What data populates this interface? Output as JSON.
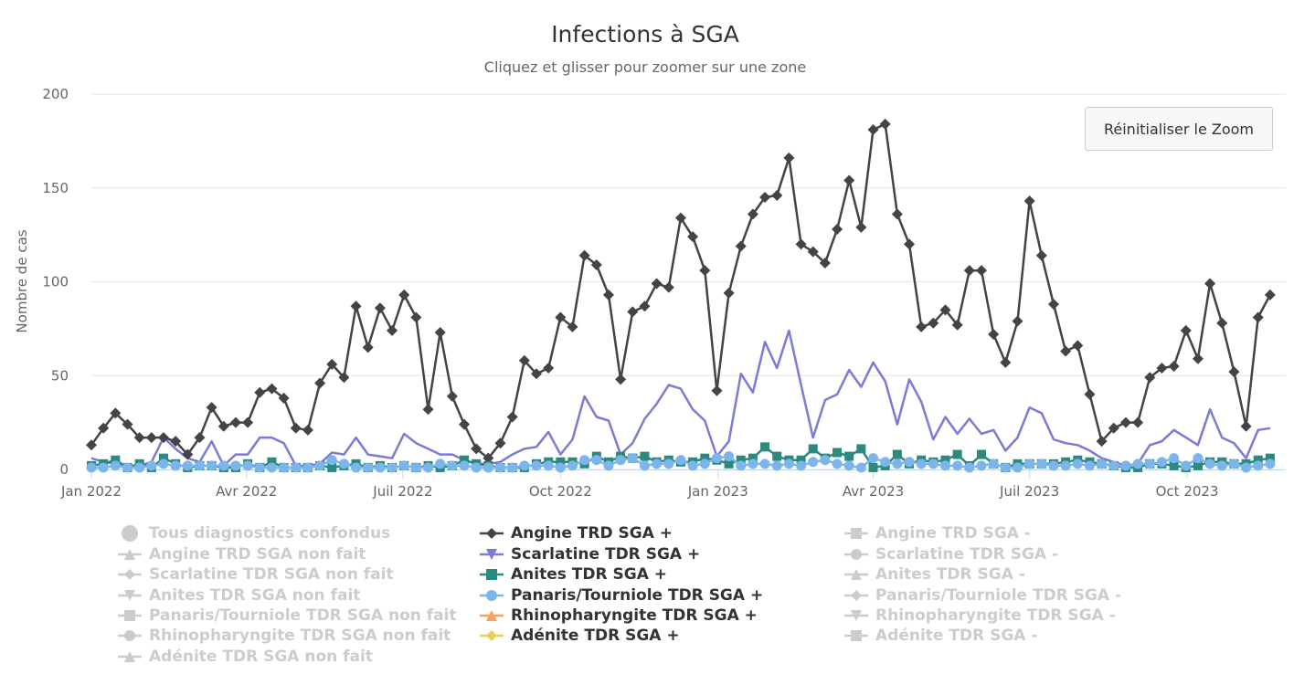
{
  "chart_data": {
    "type": "line",
    "title": "Infections à SGA",
    "subtitle": "Cliquez et glisser pour zoomer sur une zone",
    "ylabel": "Nombre de cas",
    "xlabel": "",
    "ylim": [
      0,
      200
    ],
    "yticks": [
      "0",
      "50",
      "100",
      "150",
      "200"
    ],
    "xticks": [
      {
        "label": "Jan 2022",
        "week": 0
      },
      {
        "label": "Avr 2022",
        "week": 12.9
      },
      {
        "label": "Juil 2022",
        "week": 25.9
      },
      {
        "label": "Oct 2022",
        "week": 39.0
      },
      {
        "label": "Jan 2023",
        "week": 52.1
      },
      {
        "label": "Avr 2023",
        "week": 65
      },
      {
        "label": "Juil 2023",
        "week": 78
      },
      {
        "label": "Oct 2023",
        "week": 91.1
      }
    ],
    "x_range_weeks": [
      0,
      99.3
    ],
    "reset_zoom_label": "Réinitialiser le Zoom",
    "series": [
      {
        "name": "Angine TRD SGA +",
        "color": "#434348",
        "marker": "diamond",
        "visible": true,
        "values": [
          13,
          22,
          30,
          24,
          17,
          17,
          17,
          15,
          8,
          17,
          33,
          23,
          25,
          25,
          41,
          43,
          38,
          22,
          21,
          46,
          56,
          49,
          87,
          65,
          86,
          74,
          93,
          81,
          32,
          73,
          39,
          24,
          11,
          6,
          14,
          28,
          58,
          51,
          54,
          81,
          76,
          114,
          109,
          93,
          48,
          84,
          87,
          99,
          97,
          134,
          124,
          106,
          42,
          94,
          119,
          136,
          145,
          146,
          166,
          120,
          116,
          110,
          128,
          154,
          129,
          181,
          184,
          136,
          120,
          76,
          78,
          85,
          77,
          106,
          106,
          72,
          57,
          79,
          143,
          114,
          88,
          63,
          66,
          40,
          15,
          22,
          25,
          25,
          49,
          54,
          55,
          74,
          59,
          99,
          78,
          52,
          23,
          81,
          93
        ]
      },
      {
        "name": "Scarlatine TDR SGA +",
        "color": "#7b7bd6",
        "marker": "triangle-down",
        "visible": true,
        "values": [
          6,
          4,
          3,
          2,
          2,
          4,
          17,
          11,
          6,
          4,
          15,
          2,
          8,
          8,
          17,
          17,
          14,
          2,
          2,
          3,
          9,
          8,
          17,
          8,
          7,
          6,
          19,
          14,
          11,
          8,
          8,
          5,
          3,
          3,
          4,
          8,
          11,
          12,
          20,
          8,
          16,
          39,
          28,
          26,
          8,
          14,
          27,
          35,
          45,
          43,
          32,
          26,
          7,
          15,
          51,
          41,
          68,
          54,
          74,
          45,
          17,
          37,
          40,
          53,
          44,
          57,
          47,
          24,
          48,
          36,
          16,
          28,
          19,
          27,
          19,
          21,
          10,
          17,
          33,
          30,
          16,
          14,
          13,
          10,
          6,
          4,
          2,
          3,
          13,
          15,
          21,
          17,
          13,
          32,
          17,
          14,
          6,
          21,
          22
        ]
      },
      {
        "name": "Anites TDR SGA +",
        "color": "#2a8a7e",
        "marker": "square",
        "visible": true,
        "values": [
          2,
          3,
          5,
          1,
          3,
          1,
          6,
          3,
          1,
          2,
          2,
          1,
          1,
          3,
          1,
          4,
          1,
          1,
          1,
          2,
          1,
          2,
          3,
          1,
          2,
          1,
          2,
          1,
          2,
          1,
          2,
          5,
          3,
          2,
          1,
          1,
          1,
          3,
          4,
          4,
          4,
          3,
          7,
          4,
          7,
          6,
          7,
          4,
          5,
          4,
          4,
          6,
          5,
          3,
          5,
          6,
          12,
          7,
          5,
          5,
          11,
          6,
          9,
          7,
          11,
          1,
          2,
          8,
          3,
          5,
          4,
          5,
          8,
          2,
          8,
          3,
          1,
          3,
          3,
          3,
          3,
          4,
          5,
          4,
          3,
          2,
          1,
          1,
          3,
          3,
          2,
          1,
          2,
          4,
          4,
          3,
          3,
          5,
          6
        ]
      },
      {
        "name": "Panaris/Tourniole TDR SGA +",
        "color": "#7cb5ec",
        "marker": "circle",
        "visible": true,
        "values": [
          1,
          1,
          2,
          1,
          1,
          2,
          3,
          2,
          2,
          2,
          2,
          2,
          2,
          2,
          1,
          1,
          1,
          1,
          1,
          2,
          5,
          3,
          1,
          1,
          1,
          1,
          2,
          1,
          1,
          3,
          2,
          2,
          1,
          1,
          1,
          1,
          2,
          2,
          2,
          1,
          2,
          5,
          5,
          2,
          5,
          6,
          2,
          3,
          3,
          5,
          2,
          3,
          6,
          7,
          2,
          3,
          3,
          2,
          3,
          2,
          4,
          5,
          3,
          2,
          1,
          6,
          4,
          3,
          4,
          3,
          3,
          2,
          2,
          1,
          2,
          3,
          1,
          1,
          3,
          3,
          2,
          2,
          3,
          2,
          3,
          2,
          2,
          3,
          3,
          4,
          6,
          2,
          6,
          3,
          2,
          3,
          1,
          2,
          3
        ]
      }
    ],
    "legend": [
      {
        "name": "Tous diagnostics confondus",
        "marker": "circle",
        "visible": false,
        "color": "#cccccc"
      },
      {
        "name": "Angine TRD SGA +",
        "marker": "diamond",
        "visible": true,
        "color": "#434348"
      },
      {
        "name": "Angine TRD SGA -",
        "marker": "square",
        "visible": false,
        "color": "#cccccc"
      },
      {
        "name": "Angine TRD SGA non fait",
        "marker": "triangle",
        "visible": false,
        "color": "#cccccc"
      },
      {
        "name": "Scarlatine TDR SGA +",
        "marker": "triangle-down",
        "visible": true,
        "color": "#7b7bd6"
      },
      {
        "name": "Scarlatine TDR SGA -",
        "marker": "circle",
        "visible": false,
        "color": "#cccccc"
      },
      {
        "name": "Scarlatine TDR SGA non fait",
        "marker": "diamond",
        "visible": false,
        "color": "#cccccc"
      },
      {
        "name": "Anites TDR SGA +",
        "marker": "square",
        "visible": true,
        "color": "#2a8a7e"
      },
      {
        "name": "Anites TDR SGA -",
        "marker": "triangle",
        "visible": false,
        "color": "#cccccc"
      },
      {
        "name": "Anites TDR SGA non fait",
        "marker": "triangle-down",
        "visible": false,
        "color": "#cccccc"
      },
      {
        "name": "Panaris/Tourniole TDR SGA +",
        "marker": "circle",
        "visible": true,
        "color": "#7cb5ec"
      },
      {
        "name": "Panaris/Tourniole TDR SGA -",
        "marker": "diamond",
        "visible": false,
        "color": "#cccccc"
      },
      {
        "name": "Panaris/Tourniole TDR SGA non fait",
        "marker": "square",
        "visible": false,
        "color": "#cccccc"
      },
      {
        "name": "Rhinopharyngite TDR SGA +",
        "marker": "triangle",
        "visible": true,
        "color": "#f7a35c"
      },
      {
        "name": "Rhinopharyngite TDR SGA -",
        "marker": "triangle-down",
        "visible": false,
        "color": "#cccccc"
      },
      {
        "name": "Rhinopharyngite TDR SGA non fait",
        "marker": "circle",
        "visible": false,
        "color": "#cccccc"
      },
      {
        "name": "Adénite TDR SGA +",
        "marker": "diamond",
        "visible": true,
        "color": "#e4d354"
      },
      {
        "name": "Adénite TDR SGA -",
        "marker": "square",
        "visible": false,
        "color": "#cccccc"
      },
      {
        "name": "Adénite TDR SGA non fait",
        "marker": "triangle",
        "visible": false,
        "color": "#cccccc"
      }
    ]
  }
}
